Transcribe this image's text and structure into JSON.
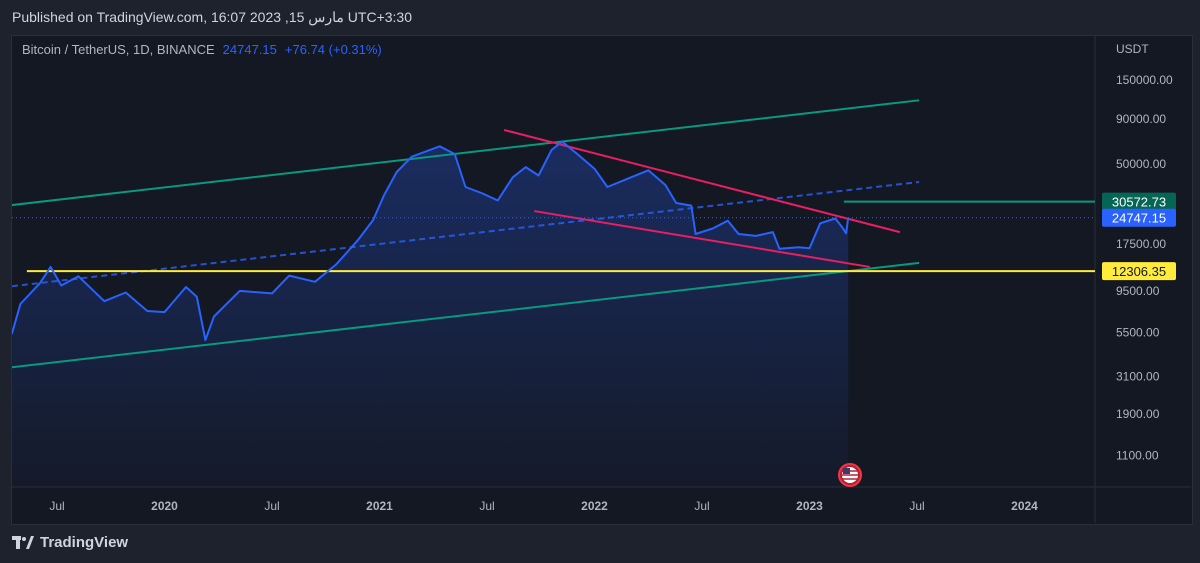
{
  "header": {
    "published": "Published on TradingView.com, 16:07 2023 ,15 مارس UTC+3:30"
  },
  "legend": {
    "symbol": "Bitcoin / TetherUS, 1D, BINANCE",
    "price": "24747.15",
    "change": "+76.74 (+0.31%)"
  },
  "brand": {
    "name": "TradingView"
  },
  "colors": {
    "line": "#2962ff",
    "green": "#089981",
    "pink": "#e91e63",
    "yellow": "#ffeb3b",
    "dashed": "#2962ff"
  },
  "chart_data": {
    "type": "line",
    "title": "Bitcoin / TetherUS, 1D, BINANCE",
    "ylabel": "USDT",
    "yscale": "log",
    "y_ticks": [
      "150000.00",
      "90000.00",
      "50000.00",
      "17500.00",
      "9500.00",
      "5500.00",
      "3100.00",
      "1900.00",
      "1100.00"
    ],
    "x_ticks": [
      {
        "label": "Jul",
        "t": 2019.5
      },
      {
        "label": "2020",
        "t": 2020
      },
      {
        "label": "Jul",
        "t": 2020.5
      },
      {
        "label": "2021",
        "t": 2021
      },
      {
        "label": "Jul",
        "t": 2021.5
      },
      {
        "label": "2022",
        "t": 2022
      },
      {
        "label": "Jul",
        "t": 2022.5
      },
      {
        "label": "2023",
        "t": 2023
      },
      {
        "label": "Jul",
        "t": 2023.5
      },
      {
        "label": "2024",
        "t": 2024
      }
    ],
    "series": [
      {
        "name": "BTCUSDT",
        "points": [
          [
            2019.29,
            5400
          ],
          [
            2019.33,
            8000
          ],
          [
            2019.42,
            10500
          ],
          [
            2019.47,
            13000
          ],
          [
            2019.52,
            10200
          ],
          [
            2019.6,
            11500
          ],
          [
            2019.72,
            8300
          ],
          [
            2019.82,
            9300
          ],
          [
            2019.92,
            7300
          ],
          [
            2020.0,
            7200
          ],
          [
            2020.1,
            10000
          ],
          [
            2020.15,
            8800
          ],
          [
            2020.19,
            5000
          ],
          [
            2020.23,
            6800
          ],
          [
            2020.35,
            9500
          ],
          [
            2020.5,
            9200
          ],
          [
            2020.58,
            11600
          ],
          [
            2020.7,
            10700
          ],
          [
            2020.8,
            13500
          ],
          [
            2020.9,
            18500
          ],
          [
            2020.97,
            24000
          ],
          [
            2021.02,
            33000
          ],
          [
            2021.08,
            45000
          ],
          [
            2021.15,
            55000
          ],
          [
            2021.28,
            63000
          ],
          [
            2021.35,
            57000
          ],
          [
            2021.4,
            37000
          ],
          [
            2021.48,
            34000
          ],
          [
            2021.55,
            31000
          ],
          [
            2021.62,
            42000
          ],
          [
            2021.68,
            48000
          ],
          [
            2021.74,
            43000
          ],
          [
            2021.8,
            60000
          ],
          [
            2021.85,
            67000
          ],
          [
            2021.92,
            57000
          ],
          [
            2022.0,
            47000
          ],
          [
            2022.06,
            37000
          ],
          [
            2022.15,
            41000
          ],
          [
            2022.25,
            46000
          ],
          [
            2022.33,
            38000
          ],
          [
            2022.38,
            30000
          ],
          [
            2022.45,
            29000
          ],
          [
            2022.47,
            20000
          ],
          [
            2022.55,
            21500
          ],
          [
            2022.62,
            23800
          ],
          [
            2022.67,
            20000
          ],
          [
            2022.75,
            19500
          ],
          [
            2022.83,
            20500
          ],
          [
            2022.86,
            16500
          ],
          [
            2022.95,
            16800
          ],
          [
            2023.0,
            16600
          ],
          [
            2023.05,
            23000
          ],
          [
            2023.12,
            24500
          ],
          [
            2023.15,
            22000
          ],
          [
            2023.17,
            20200
          ],
          [
            2023.18,
            24747
          ]
        ]
      }
    ],
    "trendlines": [
      {
        "name": "channel-upper",
        "color": "green",
        "from": [
          2019.29,
          29200
        ],
        "to": [
          2023.51,
          115000
        ]
      },
      {
        "name": "channel-lower",
        "color": "green",
        "from": [
          2019.29,
          3500
        ],
        "to": [
          2023.51,
          13700
        ]
      },
      {
        "name": "channel-mid",
        "color": "dashed",
        "from": [
          2019.29,
          10100
        ],
        "to": [
          2023.51,
          39500
        ]
      },
      {
        "name": "wedge-upper",
        "color": "pink",
        "from": [
          2021.58,
          78000
        ],
        "to": [
          2023.42,
          20500
        ]
      },
      {
        "name": "wedge-lower",
        "color": "pink",
        "from": [
          2021.72,
          27000
        ],
        "to": [
          2023.28,
          13000
        ]
      }
    ],
    "hlines": [
      {
        "price": 12306.35,
        "label": "12306.35",
        "color": "yellow",
        "from": 2019.36
      },
      {
        "price": 30572.73,
        "label": "30572.73",
        "color": "green",
        "from": 2023.16
      }
    ],
    "last_price": {
      "price": 24747.15,
      "label": "24747.15"
    }
  }
}
